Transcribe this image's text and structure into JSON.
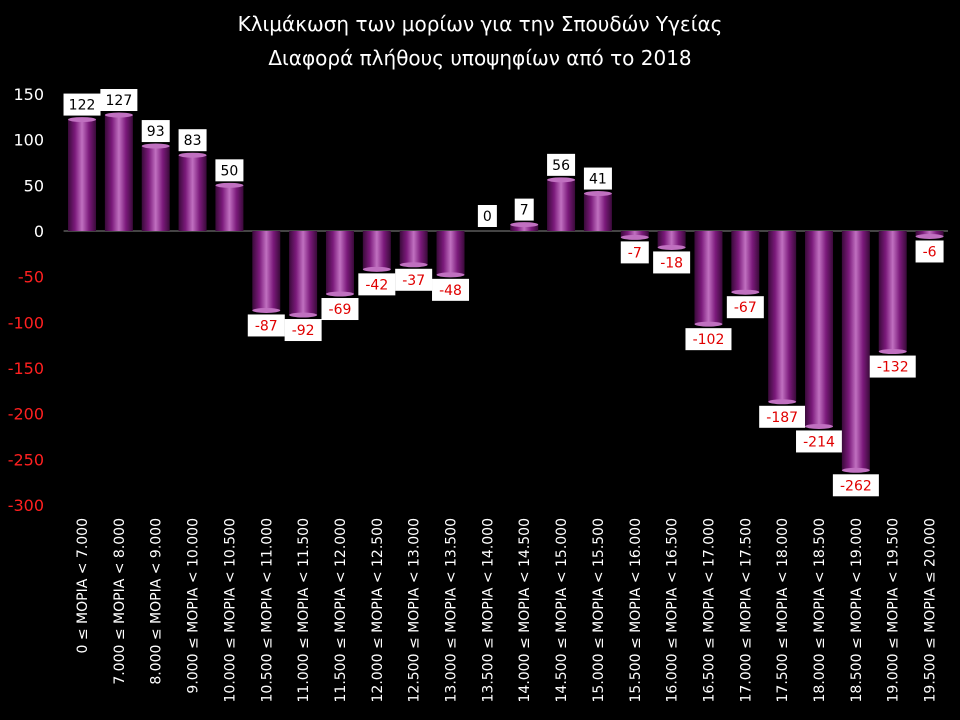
{
  "chart_data": {
    "type": "bar",
    "title": "Κλιμάκωση των μορίων για την Σπουδών Υγείας",
    "subtitle": "Διαφορά πλήθους υποψηφίων από το 2018",
    "xlabel": "",
    "ylabel": "",
    "ylim": [
      -300,
      150
    ],
    "yticks": [
      150,
      100,
      50,
      0,
      -50,
      -100,
      -150,
      -200,
      -250,
      -300
    ],
    "grid": false,
    "legend": "none",
    "categories": [
      "0 ≤ ΜΟΡΙΑ < 7.000",
      "7.000 ≤ ΜΟΡΙΑ < 8.000",
      "8.000 ≤ ΜΟΡΙΑ < 9.000",
      "9.000 ≤ ΜΟΡΙΑ < 10.000",
      "10.000 ≤ ΜΟΡΙΑ < 10.500",
      "10.500 ≤ ΜΟΡΙΑ < 11.000",
      "11.000 ≤ ΜΟΡΙΑ < 11.500",
      "11.500 ≤ ΜΟΡΙΑ < 12.000",
      "12.000 ≤ ΜΟΡΙΑ < 12.500",
      "12.500 ≤ ΜΟΡΙΑ < 13.000",
      "13.000 ≤ ΜΟΡΙΑ < 13.500",
      "13.500 ≤ ΜΟΡΙΑ < 14.000",
      "14.000 ≤ ΜΟΡΙΑ < 14.500",
      "14.500 ≤ ΜΟΡΙΑ < 15.000",
      "15.000 ≤ ΜΟΡΙΑ < 15.500",
      "15.500 ≤ ΜΟΡΙΑ < 16.000",
      "16.000 ≤ ΜΟΡΙΑ < 16.500",
      "16.500 ≤ ΜΟΡΙΑ < 17.000",
      "17.000 ≤ ΜΟΡΙΑ < 17.500",
      "17.500 ≤ ΜΟΡΙΑ < 18.000",
      "18.000 ≤ ΜΟΡΙΑ < 18.500",
      "18.500 ≤ ΜΟΡΙΑ < 19.000",
      "19.000 ≤ ΜΟΡΙΑ < 19.500",
      "19.500 ≤ ΜΟΡΙΑ ≤ 20.000"
    ],
    "values": [
      122,
      127,
      93,
      83,
      50,
      -87,
      -92,
      -69,
      -42,
      -37,
      -48,
      0,
      7,
      56,
      41,
      -7,
      -18,
      -102,
      -67,
      -187,
      -214,
      -262,
      -132,
      -6
    ],
    "colors": {
      "bar": "#7b1a7b",
      "bar_light": "#c070c0",
      "positive_label": "#000000",
      "negative_label": "#e00000",
      "positive_tick": "#ffffff",
      "negative_tick": "#ff2020",
      "background": "#000000"
    }
  }
}
